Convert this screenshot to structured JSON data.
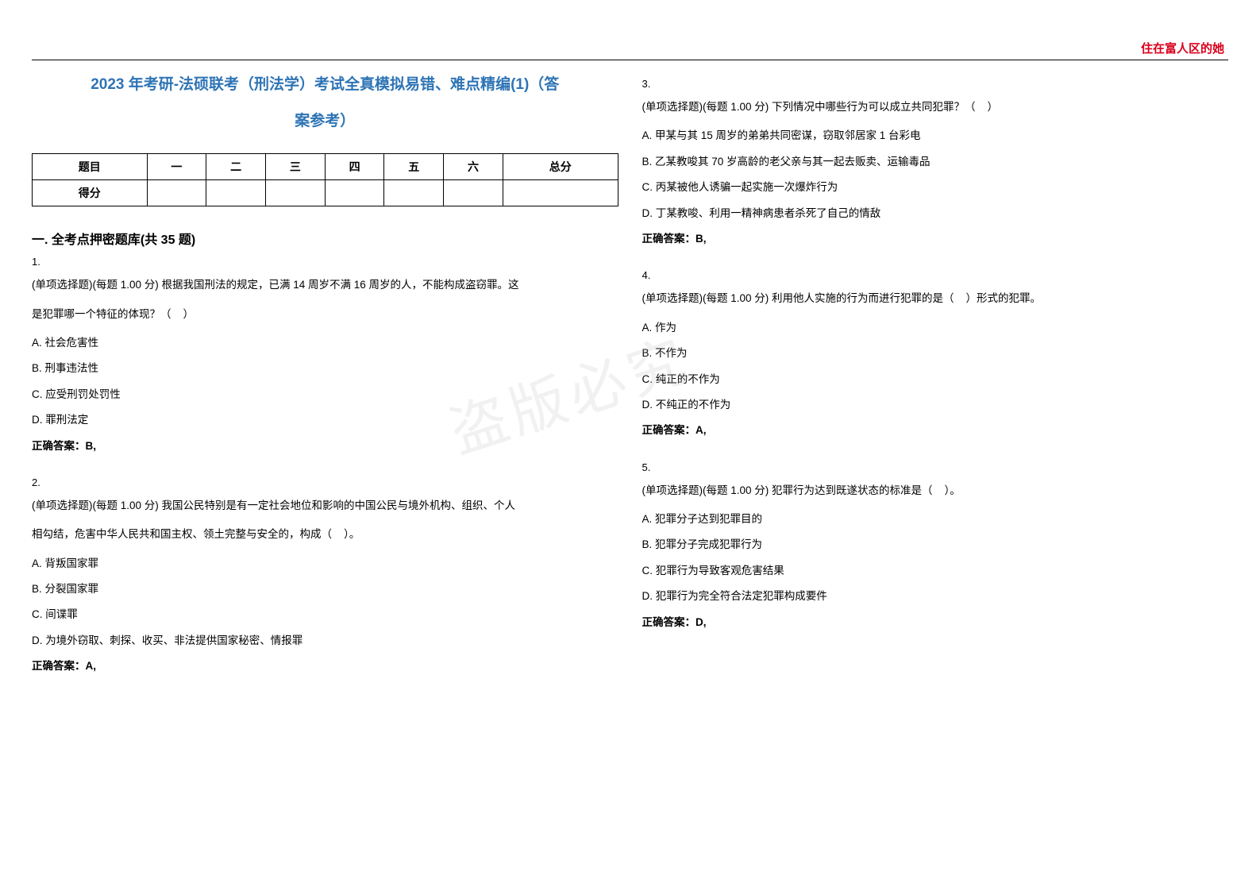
{
  "header_right": "住在富人区的她",
  "title_line1": "2023 年考研-法硕联考（刑法学）考试全真模拟易错、难点精编(1)（答",
  "title_line2": "案参考）",
  "watermark": "盗版必究",
  "score_table": {
    "headers": [
      "题目",
      "一",
      "二",
      "三",
      "四",
      "五",
      "六",
      "总分"
    ],
    "row2": "得分"
  },
  "section_title": "一. 全考点押密题库(共 35 题)",
  "questions": {
    "q1": {
      "num": "1.",
      "text": "(单项选择题)(每题 1.00 分) 根据我国刑法的规定，已满 14 周岁不满 16 周岁的人，不能构成盗窃罪。这",
      "text2": "是犯罪哪一个特征的体现？（    ）",
      "a": "A. 社会危害性",
      "b": "B. 刑事违法性",
      "c": "C. 应受刑罚处罚性",
      "d": "D. 罪刑法定",
      "answer": "正确答案：B,"
    },
    "q2": {
      "num": "2.",
      "text": "(单项选择题)(每题 1.00 分) 我国公民特别是有一定社会地位和影响的中国公民与境外机构、组织、个人",
      "text2": "相勾结，危害中华人民共和国主权、领土完整与安全的，构成（    ）。",
      "a": "A. 背叛国家罪",
      "b": "B. 分裂国家罪",
      "c": "C. 间谍罪",
      "d": "D. 为境外窃取、刺探、收买、非法提供国家秘密、情报罪",
      "answer": "正确答案：A,"
    },
    "q3": {
      "num": "3.",
      "text": "(单项选择题)(每题 1.00 分) 下列情况中哪些行为可以成立共同犯罪？（    ）",
      "a": "A. 甲某与其 15 周岁的弟弟共同密谋，窃取邻居家 1 台彩电",
      "b": "B. 乙某教唆其 70 岁高龄的老父亲与其一起去贩卖、运输毒品",
      "c": "C. 丙某被他人诱骗一起实施一次爆炸行为",
      "d": "D. 丁某教唆、利用一精神病患者杀死了自己的情敌",
      "answer": "正确答案：B,"
    },
    "q4": {
      "num": "4.",
      "text": "(单项选择题)(每题 1.00 分) 利用他人实施的行为而进行犯罪的是（    ）形式的犯罪。",
      "a": "A. 作为",
      "b": "B. 不作为",
      "c": "C. 纯正的不作为",
      "d": "D. 不纯正的不作为",
      "answer": "正确答案：A,"
    },
    "q5": {
      "num": "5.",
      "text": "(单项选择题)(每题 1.00 分) 犯罪行为达到既遂状态的标准是（    ）。",
      "a": "A. 犯罪分子达到犯罪目的",
      "b": "B. 犯罪分子完成犯罪行为",
      "c": "C. 犯罪行为导致客观危害结果",
      "d": "D. 犯罪行为完全符合法定犯罪构成要件",
      "answer": "正确答案：D,"
    }
  }
}
